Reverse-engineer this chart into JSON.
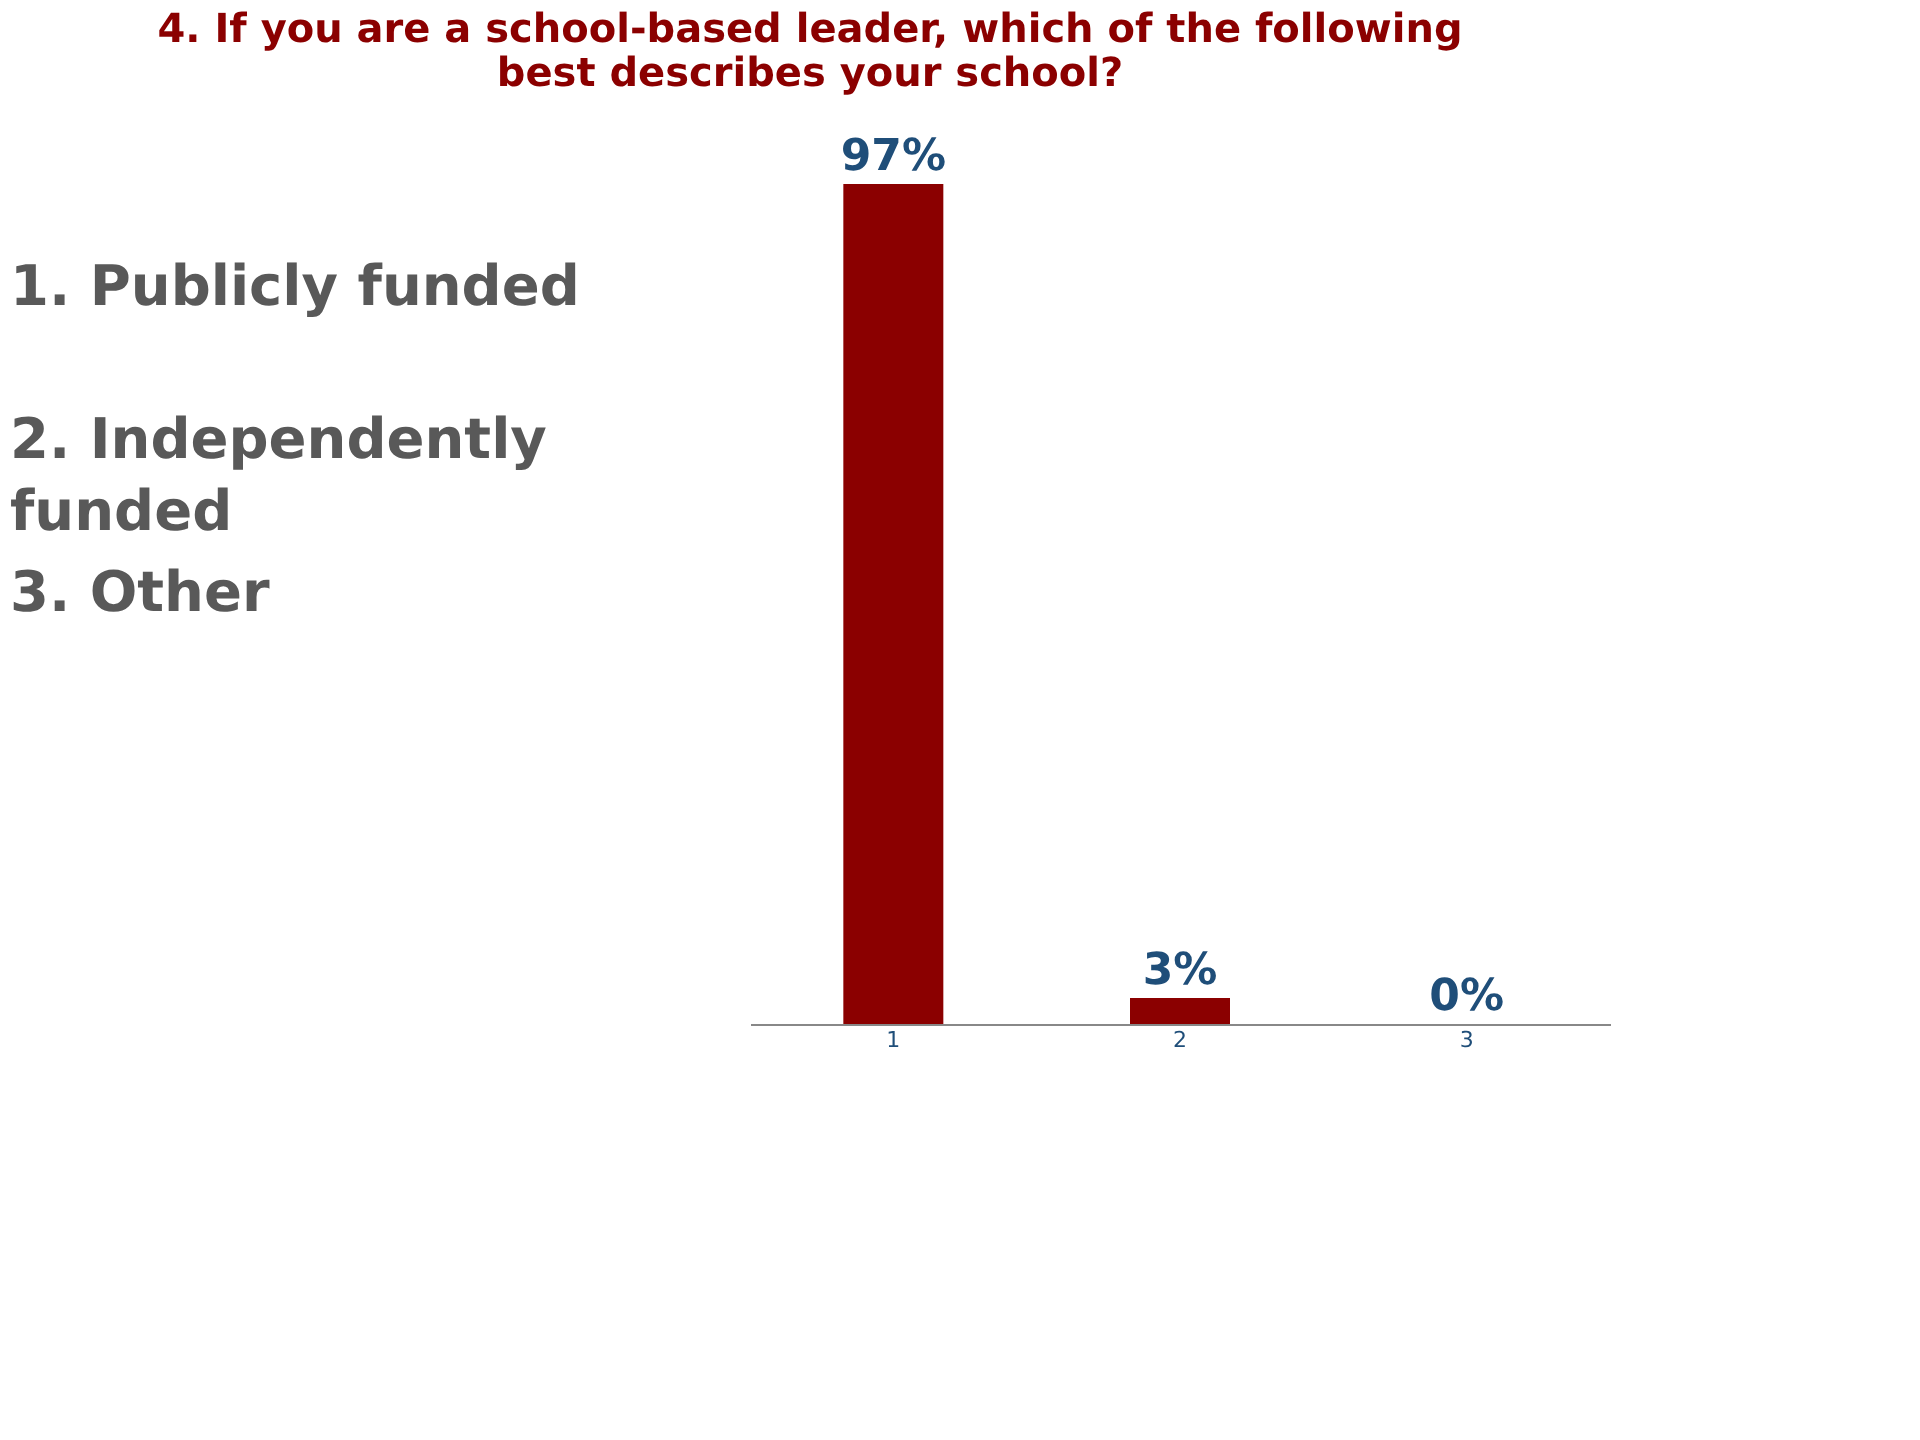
{
  "chart_data": {
    "type": "bar",
    "title": "4. If you are a school-based leader, which of the following best describes your school?",
    "categories": [
      "1",
      "2",
      "3"
    ],
    "values": [
      97,
      3,
      0
    ],
    "colors": [
      "#8b0000",
      "#8b0000",
      "#6b8e23"
    ],
    "value_labels": [
      "97%",
      "3%",
      "0%"
    ],
    "annotations": [
      "1. Publicly funded",
      "2. Independently funded",
      "3. Other"
    ],
    "grid": false
  }
}
